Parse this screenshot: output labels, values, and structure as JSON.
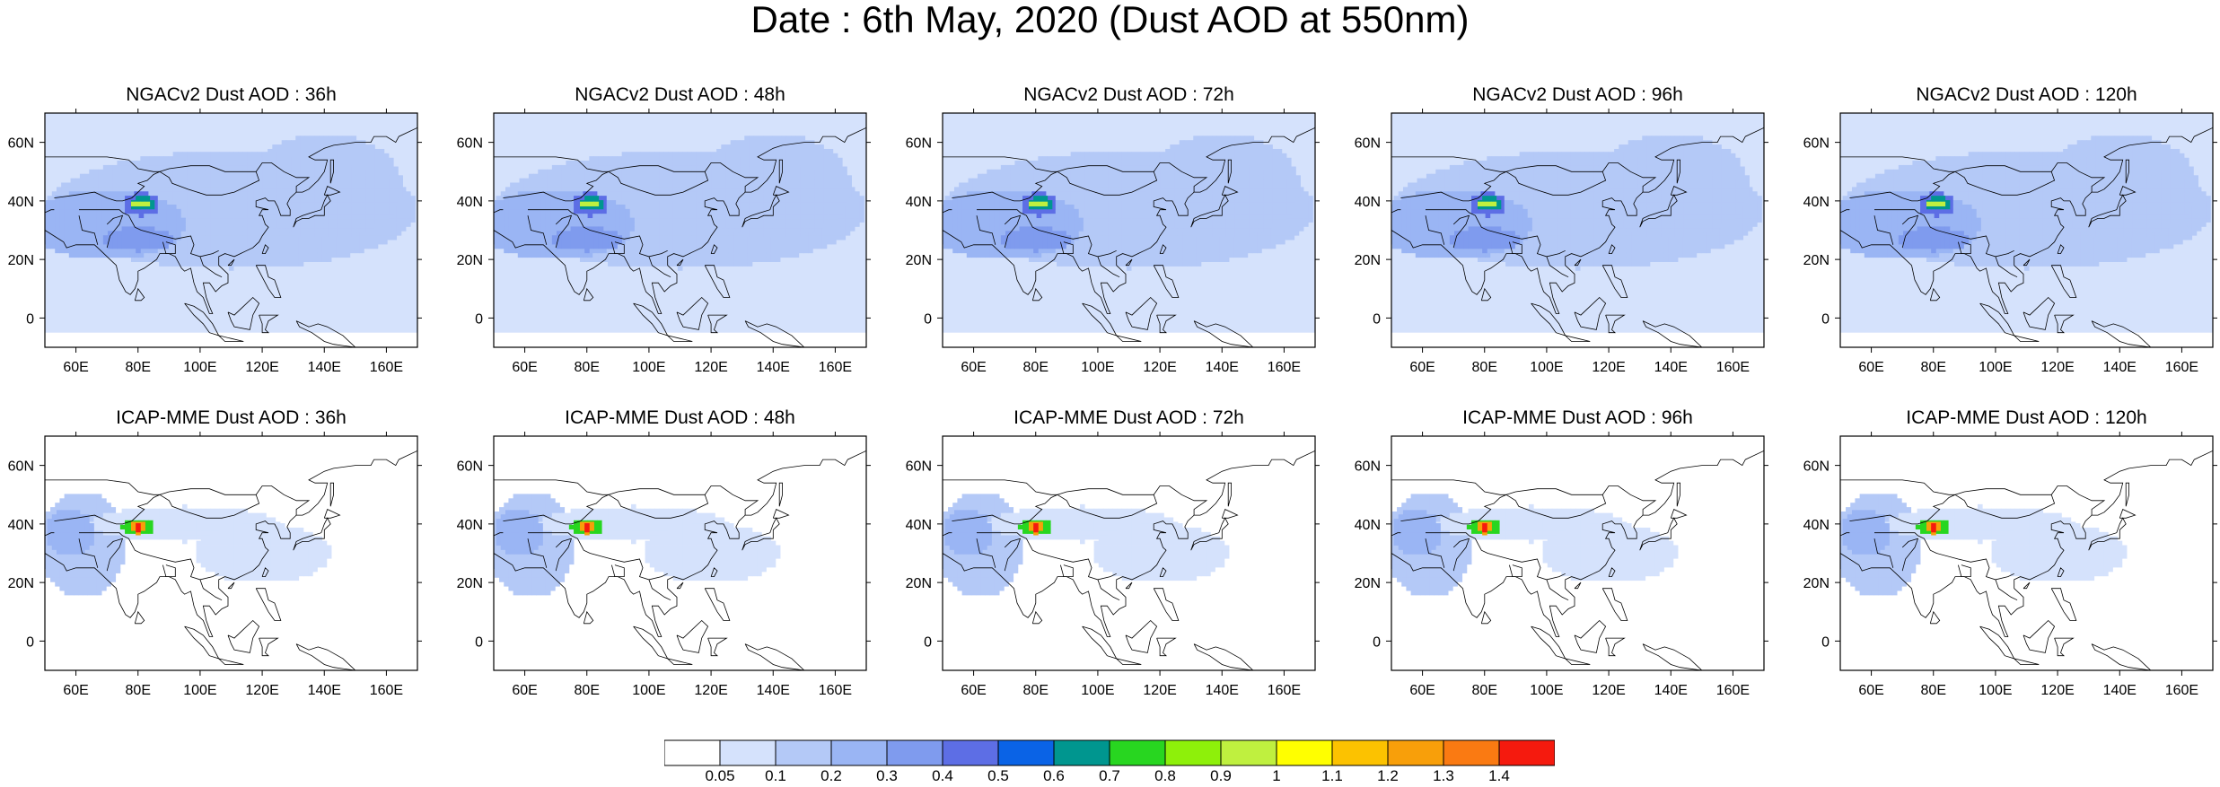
{
  "title": "Date : 6th May, 2020 (Dust AOD at 550nm)",
  "panels": [
    {
      "title": "NGACv2 Dust AOD : 36h",
      "model": "NGACv2",
      "lead": "36h"
    },
    {
      "title": "NGACv2 Dust AOD : 48h",
      "model": "NGACv2",
      "lead": "48h"
    },
    {
      "title": "NGACv2 Dust AOD : 72h",
      "model": "NGACv2",
      "lead": "72h"
    },
    {
      "title": "NGACv2 Dust AOD : 96h",
      "model": "NGACv2",
      "lead": "96h"
    },
    {
      "title": "NGACv2 Dust AOD : 120h",
      "model": "NGACv2",
      "lead": "120h"
    },
    {
      "title": "ICAP-MME Dust AOD : 36h",
      "model": "ICAP-MME",
      "lead": "36h"
    },
    {
      "title": "ICAP-MME Dust AOD : 48h",
      "model": "ICAP-MME",
      "lead": "48h"
    },
    {
      "title": "ICAP-MME Dust AOD : 72h",
      "model": "ICAP-MME",
      "lead": "72h"
    },
    {
      "title": "ICAP-MME Dust AOD : 96h",
      "model": "ICAP-MME",
      "lead": "96h"
    },
    {
      "title": "ICAP-MME Dust AOD : 120h",
      "model": "ICAP-MME",
      "lead": "120h"
    }
  ],
  "map": {
    "lon_range": [
      50,
      170
    ],
    "lat_range": [
      -10,
      70
    ],
    "lon_ticks": [
      60,
      80,
      100,
      120,
      140,
      160
    ],
    "lon_tick_labels": [
      "60E",
      "80E",
      "100E",
      "120E",
      "140E",
      "160E"
    ],
    "lat_ticks": [
      0,
      20,
      40,
      60
    ],
    "lat_tick_labels": [
      "0",
      "20N",
      "40N",
      "60N"
    ]
  },
  "colorbar": {
    "levels": [
      "0.05",
      "0.1",
      "0.2",
      "0.3",
      "0.4",
      "0.5",
      "0.6",
      "0.7",
      "0.8",
      "0.9",
      "1",
      "1.1",
      "1.2",
      "1.3",
      "1.4"
    ],
    "colors": [
      "#ffffff",
      "#d5e2fc",
      "#b4c9f7",
      "#9ab5f4",
      "#7f9bee",
      "#5d6ee5",
      "#0a63e6",
      "#00968f",
      "#28d620",
      "#8ef00a",
      "#bff03f",
      "#ffff00",
      "#fcc200",
      "#f89f0a",
      "#fa7a12",
      "#f51a0e"
    ]
  },
  "dust_fields": {
    "NGACv2": {
      "background": [
        {
          "lon": [
            50,
            170
          ],
          "lat": [
            -5,
            70
          ],
          "level": 1
        }
      ],
      "patches": [
        {
          "lon": 110,
          "lat": 37,
          "rlon": 60,
          "rlat": 20,
          "level": 2
        },
        {
          "lon": 140,
          "lat": 45,
          "rlon": 25,
          "rlat": 18,
          "level": 2
        },
        {
          "lon": 70,
          "lat": 32,
          "rlon": 25,
          "rlat": 12,
          "level": 3
        },
        {
          "lon": 80,
          "lat": 27,
          "rlon": 12,
          "rlat": 4,
          "level": 4
        },
        {
          "lon": 81,
          "lat": 39,
          "rlon": 6,
          "rlat": 4,
          "level": 5
        },
        {
          "lon": 81,
          "lat": 39,
          "rlon": 4,
          "rlat": 2.5,
          "level": 7
        },
        {
          "lon": 81,
          "lat": 39,
          "rlon": 2.5,
          "rlat": 1.5,
          "level": 10
        }
      ]
    },
    "ICAP-MME": {
      "patches": [
        {
          "lon": 62,
          "lat": 33,
          "rlon": 14,
          "rlat": 18,
          "level": 2
        },
        {
          "lon": 95,
          "lat": 40,
          "rlon": 30,
          "rlat": 6,
          "level": 1
        },
        {
          "lon": 120,
          "lat": 30,
          "rlon": 22,
          "rlat": 10,
          "level": 1
        },
        {
          "lon": 58,
          "lat": 37,
          "rlon": 8,
          "rlat": 8,
          "level": 3
        },
        {
          "lon": 80,
          "lat": 39,
          "rlon": 5,
          "rlat": 3,
          "level": 8
        },
        {
          "lon": 80,
          "lat": 39,
          "rlon": 3,
          "rlat": 2,
          "level": 13
        },
        {
          "lon": 80,
          "lat": 39,
          "rlon": 1.5,
          "rlat": 1,
          "level": 15
        }
      ]
    }
  }
}
